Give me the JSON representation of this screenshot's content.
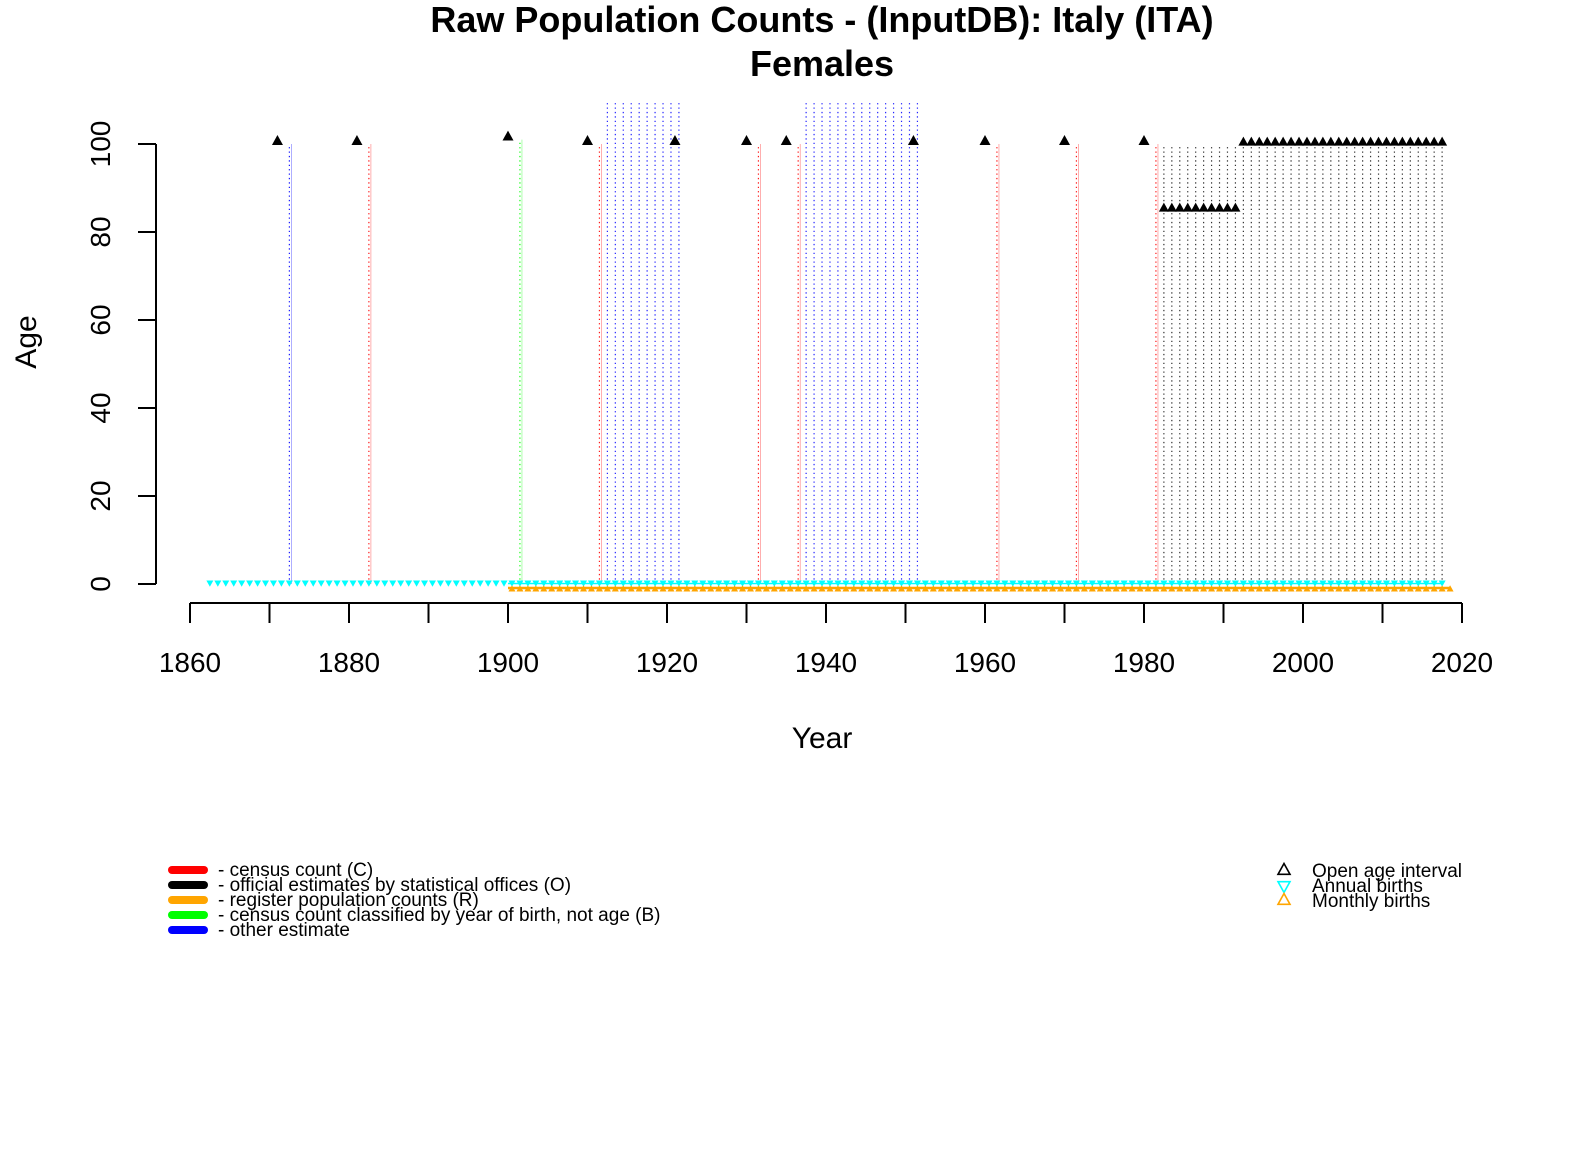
{
  "chart_data": {
    "type": "scatter",
    "title": "Raw Population Counts - (InputDB): Italy (ITA)",
    "subtitle": "Females",
    "xlabel": "Year",
    "ylabel": "Age",
    "xlim": [
      1860,
      2020
    ],
    "ylim": [
      0,
      100
    ],
    "x_ticks": [
      "1860",
      "1880",
      "1900",
      "1920",
      "1940",
      "1960",
      "1980",
      "2000",
      "2020"
    ],
    "y_ticks": [
      "0",
      "20",
      "40",
      "60",
      "80",
      "100"
    ],
    "grid": false,
    "legend_left_position": "bottom-left",
    "legend_right_position": "bottom-right",
    "colors": {
      "census": "#ff0000",
      "official": "#000000",
      "register": "#ffa500",
      "birth_cohort": "#00ff00",
      "other": "#0000ff",
      "annual_births": "#00ffff",
      "monthly_births": "#ffa500",
      "open_age": "#000000"
    },
    "series": [
      {
        "name": "- census count (C)",
        "color": "#ff0000",
        "columns": [
          {
            "year": 1882,
            "max_age": 100,
            "open_age": 100
          },
          {
            "year": 1911,
            "max_age": 100,
            "open_age": 100
          },
          {
            "year": 1931,
            "max_age": 100,
            "open_age": 100
          },
          {
            "year": 1936,
            "max_age": 100,
            "open_age": 100
          },
          {
            "year": 1961,
            "max_age": 100,
            "open_age": 100
          },
          {
            "year": 1971,
            "max_age": 100,
            "open_age": 100
          },
          {
            "year": 1981,
            "max_age": 100,
            "open_age": 100
          }
        ]
      },
      {
        "name": "- official estimates by statistical offices (O)",
        "color": "#000000",
        "year_range": [
          1982,
          2017
        ],
        "open_age_by_period": [
          {
            "from": 1982,
            "to": 1991,
            "open_age": 85
          },
          {
            "from": 1992,
            "to": 2017,
            "open_age": 100
          }
        ]
      },
      {
        "name": "- register population counts (R)",
        "color": "#ffa500",
        "columns": []
      },
      {
        "name": "- census count classified by year of birth, not age (B)",
        "color": "#00ff00",
        "columns": [
          {
            "year": 1901,
            "max_age": 101,
            "open_age": 101
          }
        ]
      },
      {
        "name": "- other estimate",
        "color": "#0000ff",
        "columns": [
          {
            "year": 1872,
            "max_age": 100,
            "open_age": 100
          }
        ],
        "year_ranges": [
          {
            "from": 1912,
            "to": 1921,
            "max_age": 110,
            "open_age_last": 100
          },
          {
            "from": 1937,
            "to": 1951,
            "max_age": 110,
            "open_age_last": 100
          }
        ]
      }
    ],
    "births": [
      {
        "name": "Annual births",
        "color": "#00ffff",
        "marker": "down-triangle",
        "age": 0,
        "year_range": [
          1862,
          2017
        ]
      },
      {
        "name": "Monthly births",
        "color": "#ffa500",
        "marker": "up-triangle",
        "age": -1,
        "year_range": [
          1900,
          2018
        ]
      }
    ],
    "marker_legend": [
      {
        "label": "Open age interval",
        "marker": "up-triangle",
        "color": "#000000"
      },
      {
        "label": "Annual births",
        "marker": "down-triangle",
        "color": "#00ffff"
      },
      {
        "label": "Monthly births",
        "marker": "up-triangle",
        "color": "#ffa500"
      }
    ]
  }
}
